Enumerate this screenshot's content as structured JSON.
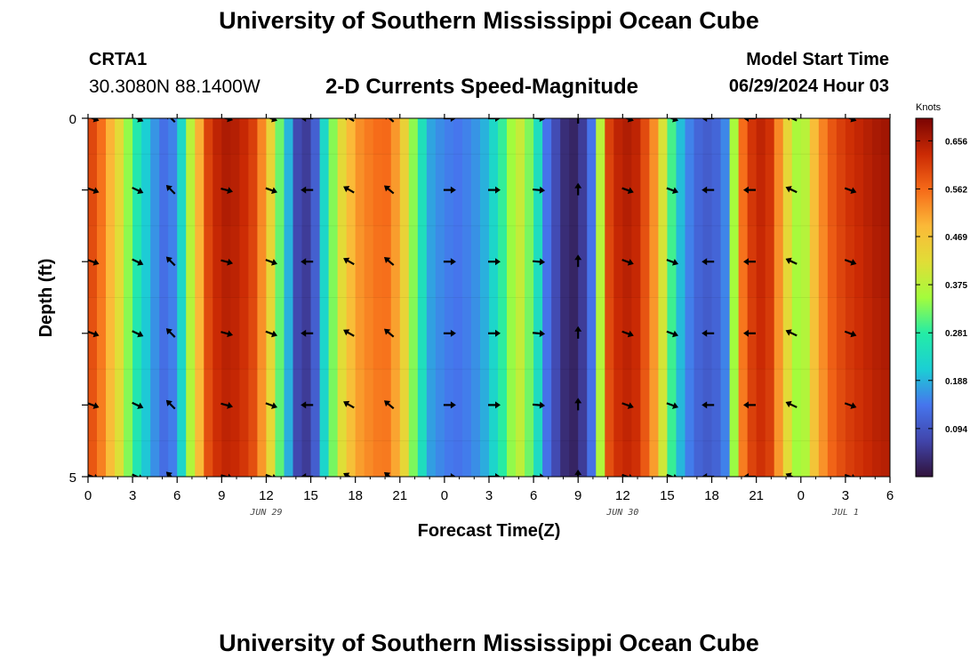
{
  "header": {
    "title": "University of Southern Mississippi Ocean Cube",
    "station": "CRTA1",
    "coords": "30.3080N  88.1400W",
    "subtitle": "2-D Currents Speed-Magnitude",
    "model_start_label": "Model Start Time",
    "model_start_value": "06/29/2024 Hour 03"
  },
  "footer": {
    "title": "University of Southern Mississippi Ocean Cube"
  },
  "chart_data": {
    "type": "heatmap",
    "title": "2-D Currents Speed-Magnitude",
    "xlabel": "Forecast Time(Z)",
    "ylabel": "Depth (ft)",
    "x_ticks": [
      "0",
      "3",
      "6",
      "9",
      "12",
      "15",
      "18",
      "21",
      "0",
      "3",
      "6",
      "9",
      "12",
      "15",
      "18",
      "21",
      "0",
      "3",
      "6"
    ],
    "x_hours": [
      0,
      3,
      6,
      9,
      12,
      15,
      18,
      21,
      24,
      27,
      30,
      33,
      36,
      39,
      42,
      45,
      48,
      51,
      54
    ],
    "x_range_hours": [
      0,
      54
    ],
    "date_labels": [
      {
        "label": "JUN 29",
        "hour": 12
      },
      {
        "label": "JUN 30",
        "hour": 36
      },
      {
        "label": "JUL 1",
        "hour": 51
      }
    ],
    "y_ticks": [
      "0",
      "5"
    ],
    "y_range": [
      0,
      5
    ],
    "depth_levels": [
      0,
      1,
      2,
      3,
      4,
      5
    ],
    "colorbar": {
      "title": "Knots",
      "ticks": [
        "0.656",
        "0.562",
        "0.469",
        "0.375",
        "0.281",
        "0.188",
        "0.094"
      ],
      "tick_values": [
        0.656,
        0.562,
        0.469,
        0.375,
        0.281,
        0.188,
        0.094
      ],
      "min": 0.0,
      "max": 0.7
    },
    "speed_profile_hours": [
      0,
      1,
      2,
      3,
      4,
      5,
      6,
      7,
      8,
      9,
      10,
      11,
      12,
      13,
      14,
      15,
      16,
      17,
      18,
      19,
      20,
      21,
      22,
      23,
      24,
      25,
      26,
      27,
      28,
      29,
      30,
      31,
      32,
      33,
      34,
      35,
      36,
      37,
      38,
      39,
      40,
      41,
      42,
      43,
      44,
      45,
      46,
      47,
      48,
      49,
      50,
      51,
      52,
      53,
      54
    ],
    "speed_profile_knots": [
      0.62,
      0.55,
      0.44,
      0.3,
      0.2,
      0.13,
      0.16,
      0.4,
      0.6,
      0.66,
      0.65,
      0.62,
      0.5,
      0.3,
      0.08,
      0.05,
      0.25,
      0.42,
      0.52,
      0.55,
      0.57,
      0.5,
      0.32,
      0.18,
      0.15,
      0.14,
      0.16,
      0.2,
      0.3,
      0.4,
      0.3,
      0.12,
      0.04,
      0.02,
      0.15,
      0.6,
      0.66,
      0.64,
      0.55,
      0.35,
      0.18,
      0.12,
      0.1,
      0.16,
      0.55,
      0.65,
      0.62,
      0.45,
      0.32,
      0.5,
      0.58,
      0.62,
      0.64,
      0.66,
      0.67
    ],
    "arrows": {
      "depths": [
        0,
        1,
        2,
        3,
        4,
        5
      ],
      "hours": [
        0.3,
        3.3,
        5.6,
        9.3,
        12.3,
        14.8,
        17.6,
        20.3,
        24.3,
        27.3,
        30.3,
        33,
        36.3,
        39.3,
        41.8,
        44.6,
        47.4,
        51.3
      ],
      "angles_deg": [
        20,
        25,
        -135,
        15,
        20,
        180,
        -150,
        -140,
        0,
        0,
        5,
        -90,
        20,
        20,
        180,
        180,
        -155,
        20
      ]
    }
  }
}
